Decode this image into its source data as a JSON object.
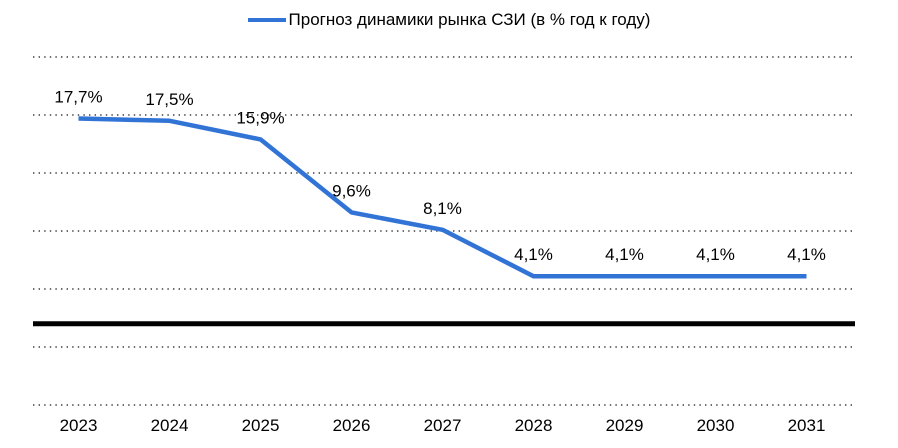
{
  "legend": {
    "label": "Прогноз динамики рынка СЗИ (в % год к году)"
  },
  "chart_data": {
    "type": "line",
    "title": "Прогноз динамики рынка СЗИ (в % год к году)",
    "categories": [
      "2023",
      "2024",
      "2025",
      "2026",
      "2027",
      "2028",
      "2029",
      "2030",
      "2031"
    ],
    "series": [
      {
        "name": "Прогноз динамики рынка СЗИ (в % год к году)",
        "values": [
          17.7,
          17.5,
          15.9,
          9.6,
          8.1,
          4.1,
          4.1,
          4.1,
          4.1
        ],
        "labels": [
          "17,7%",
          "17,5%",
          "15,9%",
          "9,6%",
          "8,1%",
          "4,1%",
          "4,1%",
          "4,1%",
          "4,1%"
        ]
      }
    ],
    "xlabel": "",
    "ylabel": "",
    "ylim": [
      -9.5,
      23
    ],
    "gridline_values": [
      23,
      18,
      13,
      8,
      3,
      -2,
      -7
    ],
    "zero_axis_value": 0,
    "grid": "dotted",
    "legend_position": "top-center",
    "line_color": "#3174d6",
    "axis_color": "#000000",
    "label_color": "#000000"
  }
}
